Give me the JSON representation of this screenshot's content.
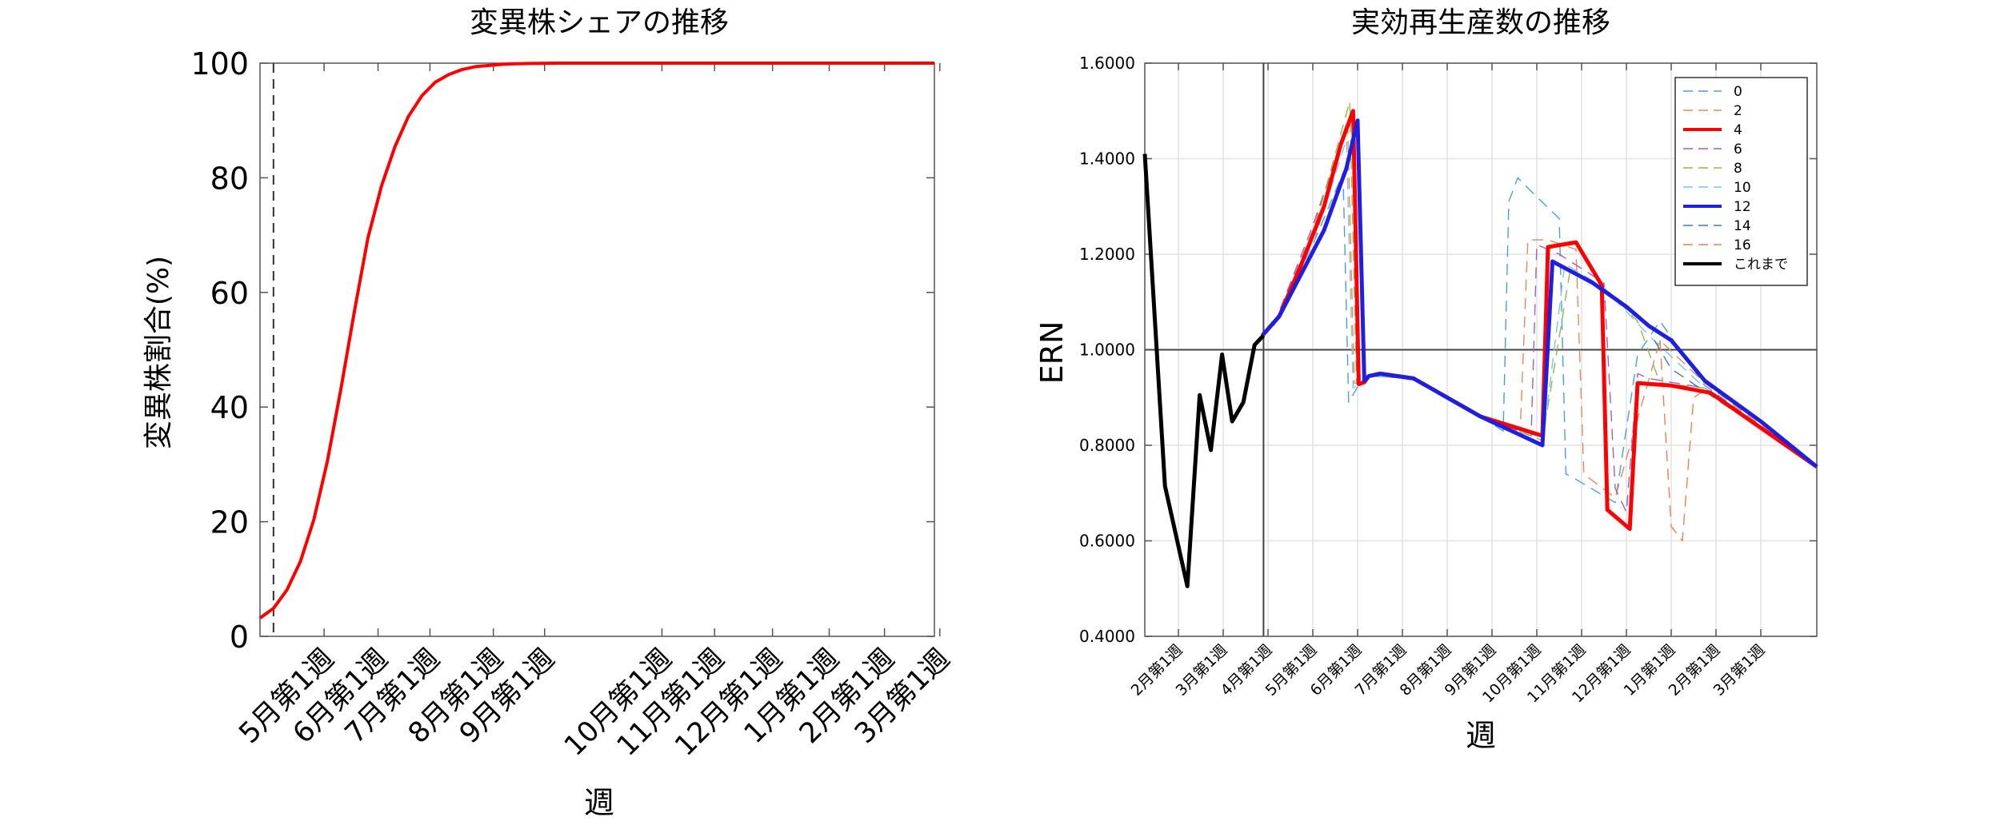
{
  "chart_data": [
    {
      "type": "line",
      "title": "変異株シェアの推移",
      "xlabel": "週",
      "ylabel": "変異株割合(%)",
      "ylim": [
        0,
        100
      ],
      "yticks": [
        0,
        20,
        40,
        60,
        80,
        100
      ],
      "xrange": [
        0,
        50
      ],
      "xticks": [
        {
          "x": 4.75,
          "label": "5月第1週"
        },
        {
          "x": 8.75,
          "label": "6月第1週"
        },
        {
          "x": 12.6,
          "label": "7月第1週"
        },
        {
          "x": 17.3,
          "label": "8月第1週"
        },
        {
          "x": 21.1,
          "label": "9月第1週"
        },
        {
          "x": 29.8,
          "label": "10月第1週"
        },
        {
          "x": 33.7,
          "label": "11月第1週"
        },
        {
          "x": 38.0,
          "label": "12月第1週"
        },
        {
          "x": 42.2,
          "label": "1月第1週"
        },
        {
          "x": 46.3,
          "label": "2月第1週"
        },
        {
          "x": 50.4,
          "label": "3月第1週"
        }
      ],
      "vline_dashed_x": 1.0,
      "grid": false,
      "series": [
        {
          "color": "#ff0000",
          "x": [
            0,
            1,
            2,
            3,
            4,
            5,
            6,
            7,
            8,
            9,
            10,
            11,
            12,
            13,
            14,
            15,
            16,
            17,
            18,
            19,
            20,
            22,
            25,
            30,
            35,
            40,
            45,
            50
          ],
          "y": [
            3.2,
            4.9,
            8.1,
            13.1,
            20.4,
            30.6,
            43.2,
            56.7,
            69.5,
            78.5,
            85.4,
            90.7,
            94.3,
            96.7,
            98.0,
            98.9,
            99.4,
            99.6,
            99.8,
            99.9,
            99.95,
            100,
            100,
            100,
            100,
            100,
            100,
            100
          ]
        }
      ]
    },
    {
      "type": "line",
      "title": "実効再生産数の推移",
      "xlabel": "週",
      "ylabel": "ERN",
      "ylim": [
        0.4,
        1.6
      ],
      "yticks": [
        0.4,
        0.6,
        0.8,
        1.0,
        1.2,
        1.4,
        1.6
      ],
      "ytick_labels": [
        "0.4000",
        "0.6000",
        "0.8000",
        "1.0000",
        "1.2000",
        "1.4000",
        "1.6000"
      ],
      "xrange": [
        0,
        60
      ],
      "xticks": [
        {
          "x": 3,
          "label": "2月第1週"
        },
        {
          "x": 7,
          "label": "3月第1週"
        },
        {
          "x": 11,
          "label": "4月第1週"
        },
        {
          "x": 15,
          "label": "5月第1週"
        },
        {
          "x": 19,
          "label": "6月第1週"
        },
        {
          "x": 23,
          "label": "7月第1週"
        },
        {
          "x": 27,
          "label": "8月第1週"
        },
        {
          "x": 31,
          "label": "9月第1週"
        },
        {
          "x": 35,
          "label": "10月第1週"
        },
        {
          "x": 39,
          "label": "11月第1週"
        },
        {
          "x": 43,
          "label": "12月第1週"
        },
        {
          "x": 47,
          "label": "1月第1週"
        },
        {
          "x": 51,
          "label": "2月第1週"
        },
        {
          "x": 55,
          "label": "3月第1週"
        }
      ],
      "hline_y": 1.0,
      "vline_x": 10.6,
      "grid": true,
      "legend_position": "top-right",
      "series": [
        {
          "name": "0",
          "color": "#4a9fd8",
          "style": "dashed",
          "width": 1.4,
          "x": [
            11.5,
            15,
            17.7,
            18.2,
            18.7,
            19.2,
            20,
            24,
            30,
            32,
            32.5,
            33.3,
            35,
            37,
            37.6,
            38.4,
            42,
            44,
            46,
            50,
            60
          ],
          "y": [
            1.05,
            1.22,
            1.37,
            0.89,
            0.91,
            0.93,
            0.945,
            0.94,
            0.86,
            0.83,
            1.31,
            1.36,
            1.32,
            1.275,
            0.74,
            0.73,
            0.68,
            0.99,
            1.06,
            0.925,
            0.755
          ]
        },
        {
          "name": "2",
          "color": "#e58a5c",
          "style": "dashed",
          "width": 1.4,
          "x": [
            11.5,
            15,
            18.1,
            18.7,
            19.2,
            20,
            24,
            30,
            33.5,
            34.2,
            36,
            38.5,
            39.2,
            42,
            46,
            50,
            60
          ],
          "y": [
            1.05,
            1.25,
            1.48,
            0.93,
            0.93,
            0.945,
            0.94,
            0.86,
            0.82,
            1.23,
            1.23,
            1.21,
            0.74,
            0.69,
            1.02,
            0.93,
            0.755
          ]
        },
        {
          "name": "4",
          "color": "#ff0000",
          "style": "solid",
          "width": 5,
          "x": [
            10.5,
            12,
            14,
            16,
            17.5,
            18.6,
            19.1,
            19.6,
            20,
            21,
            24,
            30,
            35.5,
            36,
            38.5,
            40.8,
            41.3,
            43.3,
            44,
            47,
            50.5,
            60
          ],
          "y": [
            1.03,
            1.07,
            1.18,
            1.3,
            1.43,
            1.5,
            0.928,
            0.932,
            0.945,
            0.95,
            0.94,
            0.86,
            0.82,
            1.215,
            1.225,
            1.135,
            0.665,
            0.625,
            0.93,
            0.925,
            0.91,
            0.755
          ]
        },
        {
          "name": "6",
          "color": "#a25dbf",
          "style": "dashed",
          "width": 1.4,
          "x": [
            11.5,
            15,
            18.5,
            19.2,
            20,
            24,
            30,
            34.5,
            35,
            37,
            41,
            42,
            43,
            44,
            45,
            50,
            60
          ],
          "y": [
            1.05,
            1.26,
            1.5,
            0.93,
            0.945,
            0.94,
            0.86,
            0.82,
            1.22,
            1.2,
            1.14,
            0.71,
            0.66,
            0.95,
            0.94,
            0.92,
            0.755
          ]
        },
        {
          "name": "8",
          "color": "#8fba4a",
          "style": "dashed",
          "width": 1.4,
          "x": [
            11.5,
            15,
            18.3,
            18.9,
            19.4,
            20,
            24,
            30,
            35.5,
            38,
            41.5,
            44,
            46,
            50,
            60
          ],
          "y": [
            1.05,
            1.24,
            1.52,
            0.93,
            0.93,
            0.945,
            0.94,
            0.86,
            0.81,
            1.17,
            1.12,
            1.06,
            0.93,
            0.92,
            0.755
          ]
        },
        {
          "name": "10",
          "color": "#7ec3e8",
          "style": "dashed",
          "width": 1.4,
          "x": [
            11.5,
            15,
            18.0,
            18.6,
            19.2,
            20,
            24,
            30,
            35.5,
            37.5,
            41,
            45,
            50,
            60
          ],
          "y": [
            1.05,
            1.22,
            1.44,
            0.92,
            0.93,
            0.945,
            0.94,
            0.86,
            0.8,
            1.18,
            1.13,
            1.03,
            0.92,
            0.755
          ]
        },
        {
          "name": "12",
          "color": "#1f1fe0",
          "style": "solid",
          "width": 5,
          "x": [
            10.5,
            12,
            14,
            16,
            18,
            19.0,
            19.6,
            20,
            21,
            24,
            30,
            35.5,
            36.4,
            40,
            43,
            45,
            47,
            50,
            55,
            60
          ],
          "y": [
            1.03,
            1.07,
            1.16,
            1.25,
            1.38,
            1.48,
            0.935,
            0.945,
            0.95,
            0.94,
            0.86,
            0.8,
            1.185,
            1.14,
            1.09,
            1.05,
            1.02,
            0.935,
            0.85,
            0.755
          ]
        },
        {
          "name": "14",
          "color": "#3a7bbf",
          "style": "dashed",
          "width": 1.4,
          "x": [
            45.5,
            47,
            60
          ],
          "y": [
            1.02,
            0.96,
            0.755
          ]
        },
        {
          "name": "16",
          "color": "#f07f50",
          "style": "dashed",
          "width": 1.4,
          "x": [
            46,
            47,
            48,
            49,
            50,
            60
          ],
          "y": [
            1.02,
            0.63,
            0.6,
            0.9,
            0.915,
            0.755
          ]
        },
        {
          "name": "これまで",
          "color": "#000000",
          "style": "solid",
          "width": 5,
          "x": [
            0,
            1.8,
            3.8,
            4.9,
            5.9,
            6.9,
            7.8,
            8.8,
            9.8,
            10.6
          ],
          "y": [
            1.41,
            0.715,
            0.505,
            0.905,
            0.79,
            0.99,
            0.85,
            0.89,
            1.01,
            1.03
          ]
        }
      ]
    }
  ]
}
